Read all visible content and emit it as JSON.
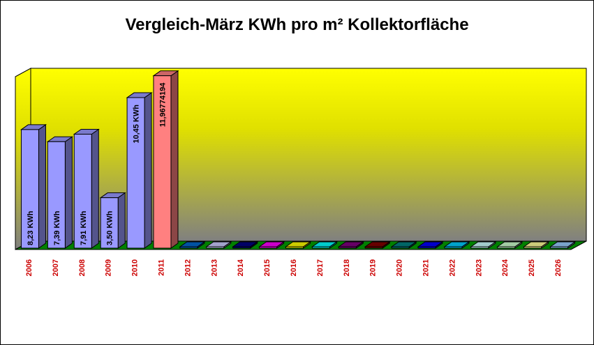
{
  "chart_data": {
    "type": "bar",
    "title": "Vergleich-März KWh pro m² Kollektorfläche",
    "categories": [
      "2006",
      "2007",
      "2008",
      "2009",
      "2010",
      "2011",
      "2012",
      "2013",
      "2014",
      "2015",
      "2016",
      "2017",
      "2018",
      "2019",
      "2020",
      "2021",
      "2022",
      "2023",
      "2024",
      "2025",
      "2026"
    ],
    "values": [
      8.23,
      7.39,
      7.91,
      3.5,
      10.45,
      11.96774194,
      0,
      0,
      0,
      0,
      0,
      0,
      0,
      0,
      0,
      0,
      0,
      0,
      0,
      0,
      0
    ],
    "data_labels": [
      "8,23 KWh",
      "7,39 KWh",
      "7,91 KWh",
      "3,50 KWh",
      "10,45 KWh",
      "11,96774194",
      "",
      "",
      "",
      "",
      "",
      "",
      "",
      "",
      "",
      "",
      "",
      "",
      "",
      "",
      ""
    ],
    "bar_colors": [
      "#9999ff",
      "#9999ff",
      "#9999ff",
      "#9999ff",
      "#9999ff",
      "#ff8080",
      "#0066cc",
      "#ccccff",
      "#000080",
      "#ff00ff",
      "#ffff00",
      "#00ffff",
      "#800080",
      "#800000",
      "#008080",
      "#0000ff",
      "#00ccff",
      "#ccffff",
      "#ccffcc",
      "#ffff99",
      "#99ccff"
    ],
    "ylim": [
      0,
      12
    ],
    "grid": false,
    "legend": "none",
    "style": "3d-column",
    "colors": {
      "wall_top": "#ffff00",
      "wall_bottom": "#808080",
      "floor": "#008000",
      "axis_labels": "#cc0000"
    }
  }
}
